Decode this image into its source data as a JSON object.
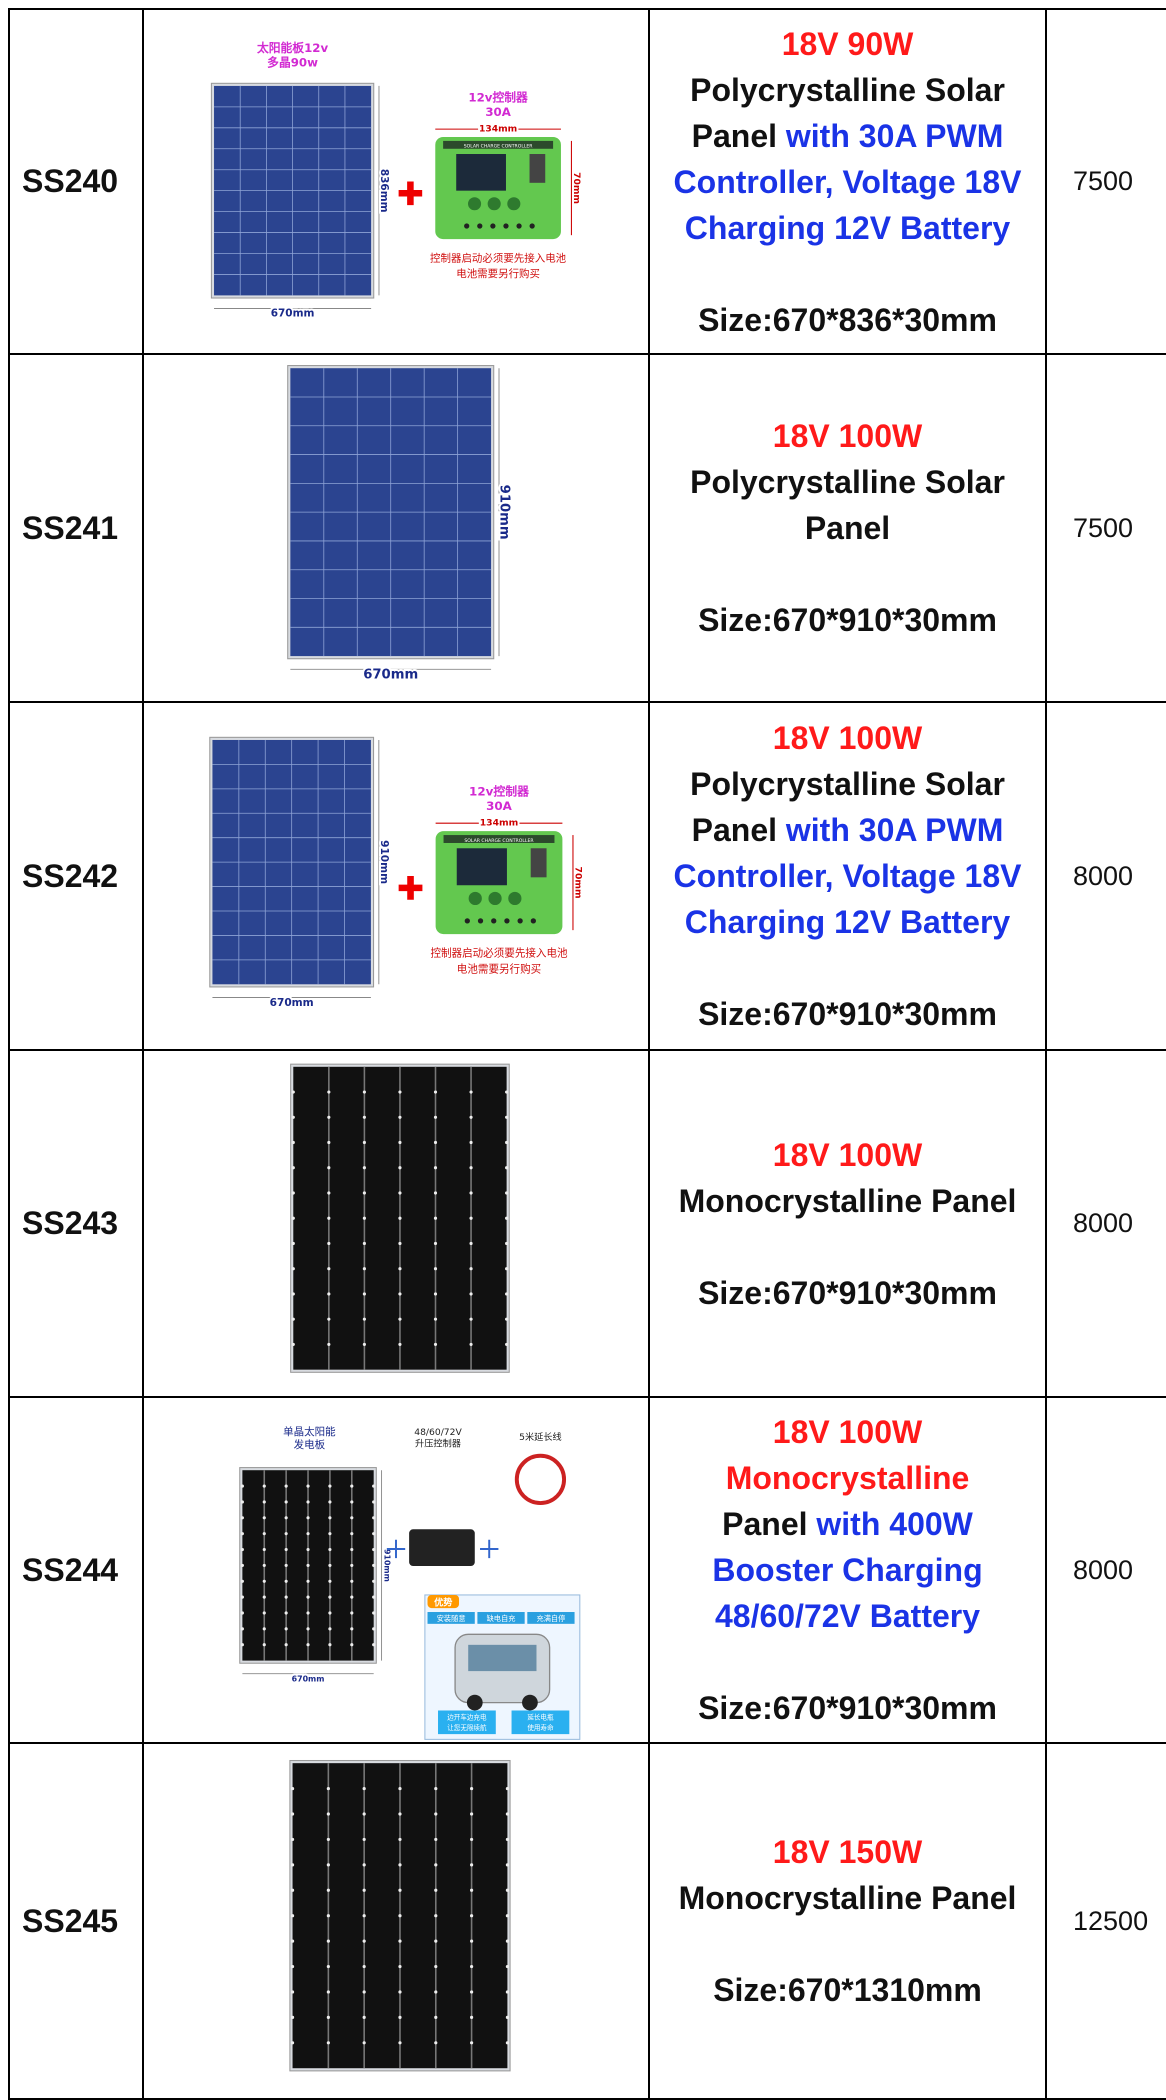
{
  "table": {
    "rows": [
      {
        "code": "SS240",
        "image": {
          "kind": "poly-controller",
          "panel_label": [
            "太阳能板12v",
            "多晶90w"
          ],
          "width": "670mm",
          "height": "836mm",
          "controller": [
            "12v控制器",
            "30A"
          ],
          "controller_brand": "SOLAR CHARGE CONTROLLER",
          "controller_width": "134mm",
          "controller_height": "70mm",
          "note": [
            "控制器启动必须要先接入电池",
            "电池需要另行购买"
          ]
        },
        "description": {
          "lines": [
            [
              {
                "text": "18V 90W",
                "color": "#ff1a1a"
              }
            ],
            [
              {
                "text": "Polycrystalline Solar Panel",
                "color": "#111111"
              },
              {
                "text": "with 30A PWM Controller, Voltage 18V Charging 12V Battery",
                "color": "#1a33e6"
              }
            ]
          ],
          "size": "Size:670*836*30mm"
        },
        "price": 7500
      },
      {
        "code": "SS241",
        "image": {
          "kind": "poly",
          "width": "670mm",
          "height": "910mm"
        },
        "description": {
          "lines": [
            [
              {
                "text": "18V 100W",
                "color": "#ff1a1a"
              }
            ],
            [
              {
                "text": "Polycrystalline Solar Panel",
                "color": "#111111"
              }
            ]
          ],
          "size": "Size:670*910*30mm"
        },
        "price": 7500
      },
      {
        "code": "SS242",
        "image": {
          "kind": "poly-controller",
          "width": "670mm",
          "height": "910mm",
          "controller": [
            "12v控制器",
            "30A"
          ],
          "controller_brand": "SOLAR CHARGE CONTROLLER",
          "controller_width": "134mm",
          "controller_height": "70mm",
          "note": [
            "控制器启动必须要先接入电池",
            "电池需要另行购买"
          ]
        },
        "description": {
          "lines": [
            [
              {
                "text": "18V 100W",
                "color": "#ff1a1a"
              }
            ],
            [
              {
                "text": "Polycrystalline Solar Panel",
                "color": "#111111"
              },
              {
                "text": "with 30A PWM Controller, Voltage 18V Charging 12V Battery",
                "color": "#1a33e6"
              }
            ]
          ],
          "size": "Size:670*910*30mm"
        },
        "price": 8000
      },
      {
        "code": "SS243",
        "image": {
          "kind": "mono"
        },
        "description": {
          "lines": [
            [
              {
                "text": "18V 100W",
                "color": "#ff1a1a"
              }
            ],
            [
              {
                "text": "Monocrystalline Panel",
                "color": "#111111"
              }
            ]
          ],
          "size": "Size:670*910*30mm"
        },
        "price": 8000
      },
      {
        "code": "SS244",
        "image": {
          "kind": "mono-booster",
          "panel_label": [
            "单晶太阳能",
            "发电板"
          ],
          "booster_label": [
            "48/60/72V",
            "升压控制器"
          ],
          "cable_label": "5米延长线",
          "width": "670mm",
          "height": "910mm",
          "advantage": "优势",
          "tags": [
            "安装随意",
            "缺电自充",
            "充满自停"
          ],
          "bottom_tags": [
            [
              "边开车边充电",
              "让您无限续航"
            ],
            [
              "延长电瓶",
              "使用寿命"
            ]
          ]
        },
        "description": {
          "lines": [
            [
              {
                "text": "18V 100W",
                "color": "#ff1a1a"
              }
            ],
            [
              {
                "text": "Monocrystalline",
                "color": "#ff1a1a"
              }
            ],
            [
              {
                "text": "Panel",
                "color": "#111111"
              },
              {
                "text": "with 400W Booster Charging 48/60/72V Battery",
                "color": "#1a33e6"
              }
            ]
          ],
          "size": "Size:670*910*30mm"
        },
        "price": 8000
      },
      {
        "code": "SS245",
        "image": {
          "kind": "mono"
        },
        "description": {
          "lines": [
            [
              {
                "text": "18V 150W",
                "color": "#ff1a1a"
              }
            ],
            [
              {
                "text": "Monocrystalline Panel",
                "color": "#111111"
              }
            ]
          ],
          "size": "Size:670*1310mm"
        },
        "price": 12500
      }
    ]
  }
}
